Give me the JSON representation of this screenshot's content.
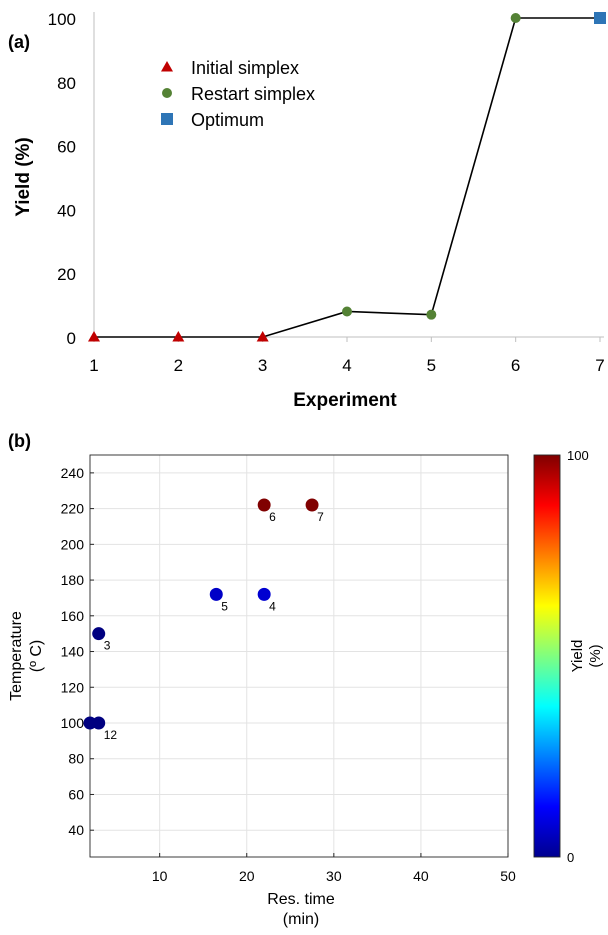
{
  "chart_data": [
    {
      "panel_label": "(a)",
      "type": "line",
      "xlabel": "Experiment",
      "ylabel": "Yield (%)",
      "xlim": [
        1,
        7
      ],
      "ylim": [
        0,
        100
      ],
      "xticks": [
        1,
        2,
        3,
        4,
        5,
        6,
        7
      ],
      "yticks": [
        0,
        20,
        40,
        60,
        80,
        100
      ],
      "grid": false,
      "legend_position": "top-left",
      "line_color": "#000000",
      "x": [
        1,
        2,
        3,
        4,
        5,
        6,
        7
      ],
      "y": [
        0,
        0,
        0,
        8,
        7,
        100,
        100
      ],
      "series": [
        {
          "name": "Initial simplex",
          "marker": "triangle",
          "color": "#c00000",
          "x": [
            1,
            2,
            3
          ],
          "y": [
            0,
            0,
            0
          ]
        },
        {
          "name": "Restart simplex",
          "marker": "circle",
          "color": "#548235",
          "x": [
            4,
            5,
            6
          ],
          "y": [
            8,
            7,
            100
          ]
        },
        {
          "name": "Optimum",
          "marker": "square",
          "color": "#2e75b6",
          "x": [
            7
          ],
          "y": [
            100
          ]
        }
      ]
    },
    {
      "panel_label": "(b)",
      "type": "scatter",
      "xlabel": [
        "Res. time",
        "(min)"
      ],
      "ylabel": [
        "Temperature",
        "(º C)"
      ],
      "xlim": [
        2,
        50
      ],
      "ylim": [
        25,
        250
      ],
      "xticks": [
        10,
        20,
        30,
        40,
        50
      ],
      "yticks": [
        40,
        60,
        80,
        100,
        120,
        140,
        160,
        180,
        200,
        220,
        240
      ],
      "grid": true,
      "colorbar": {
        "label": [
          "Yield",
          "(%)"
        ],
        "min": 0,
        "max": 100,
        "colormap": "jet"
      },
      "points": [
        {
          "label": "1",
          "x": 3,
          "y": 100,
          "yield": 0
        },
        {
          "label": "2",
          "x": 2,
          "y": 100,
          "yield": 0
        },
        {
          "label": "3",
          "x": 3,
          "y": 150,
          "yield": 0
        },
        {
          "label": "4",
          "x": 22,
          "y": 172,
          "yield": 8
        },
        {
          "label": "5",
          "x": 16.5,
          "y": 172,
          "yield": 7
        },
        {
          "label": "6",
          "x": 22,
          "y": 222,
          "yield": 100
        },
        {
          "label": "7",
          "x": 27.5,
          "y": 222,
          "yield": 100
        }
      ]
    }
  ]
}
